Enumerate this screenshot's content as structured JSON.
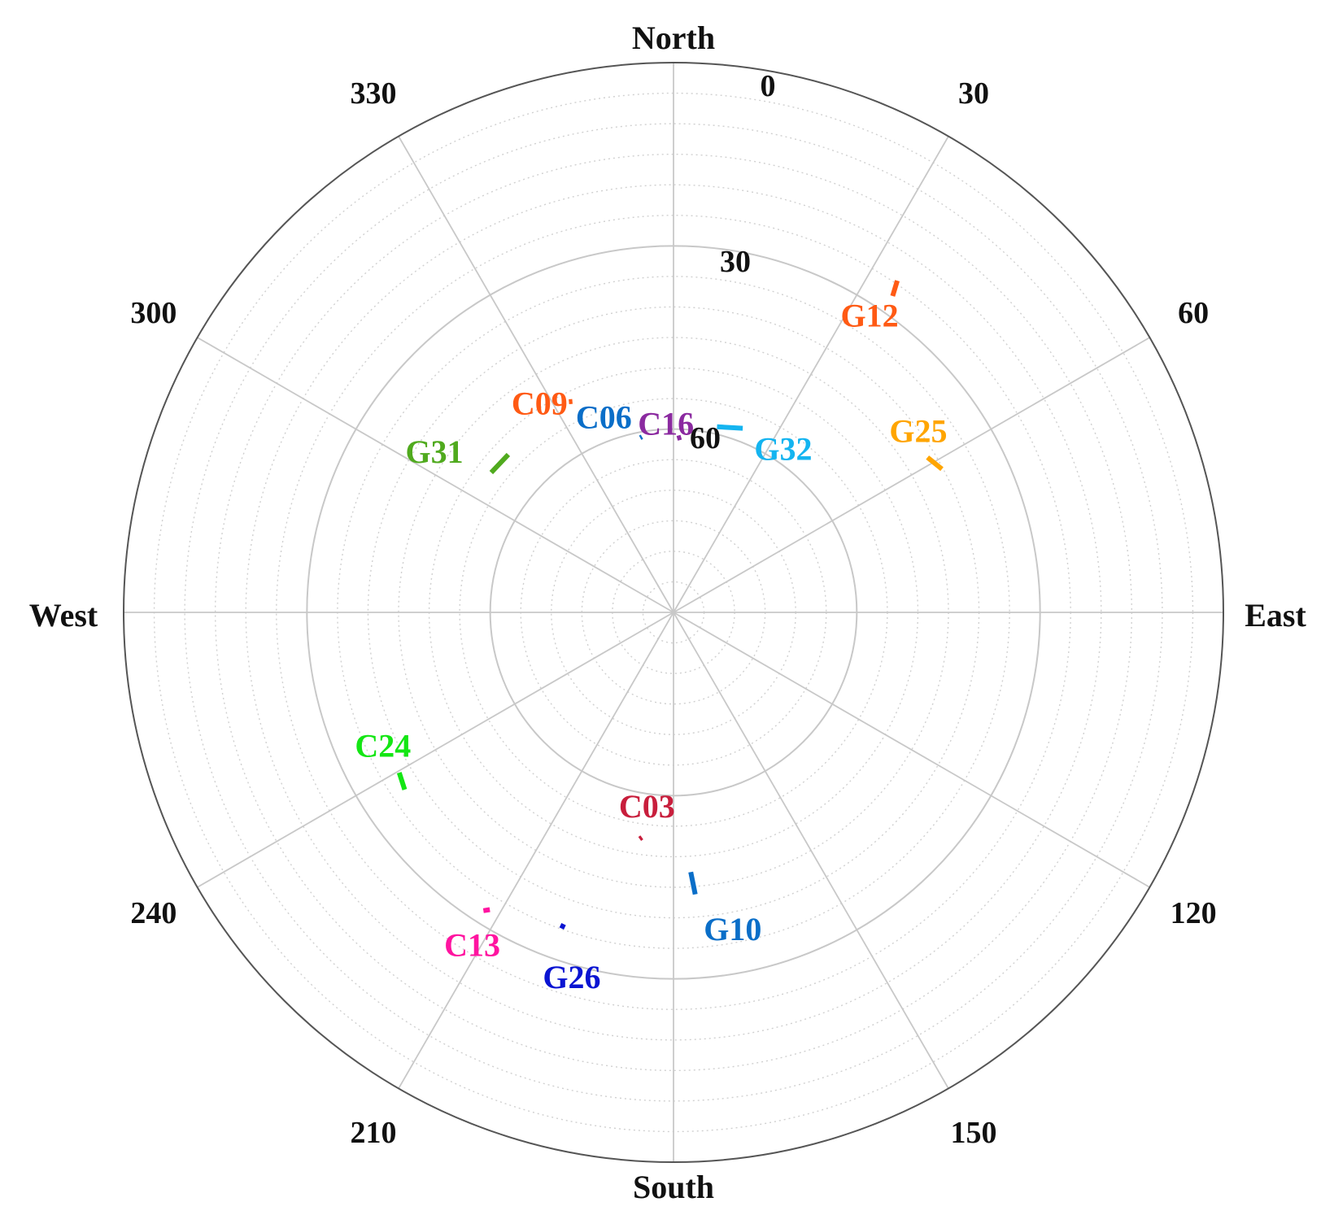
{
  "chart_data": {
    "type": "skyplot",
    "title": "",
    "directions": {
      "north": "North",
      "east": "East",
      "south": "South",
      "west": "West"
    },
    "azimuth_ticks": [
      "0",
      "30",
      "60",
      "120",
      "150",
      "210",
      "240",
      "300",
      "330"
    ],
    "azimuth_tick_values": [
      0,
      30,
      60,
      120,
      150,
      210,
      240,
      300,
      330
    ],
    "elevation_ticks": [
      "0",
      "30",
      "60"
    ],
    "elevation_tick_values": [
      0,
      30,
      60
    ],
    "elevation_range": [
      0,
      90
    ],
    "minor_ring_step_deg": 5,
    "grid": true,
    "colors": {
      "major_grid": "#c8c8c8",
      "minor_grid": "#d0d0d0",
      "outline": "#555555"
    },
    "series": [
      {
        "name": "G12",
        "color": "#ff5a14",
        "track": [
          [
            34.7,
            27.0
          ],
          [
            34.0,
            24.5
          ]
        ]
      },
      {
        "name": "G25",
        "color": "#ffa500",
        "track": [
          [
            58.6,
            41.3
          ],
          [
            61.9,
            40.2
          ]
        ]
      },
      {
        "name": "C16",
        "color": "#8b2aa0",
        "track": [
          [
            1.2,
            61.5
          ],
          [
            2.5,
            61.3
          ]
        ]
      },
      {
        "name": "C06",
        "color": "#0a6ec8",
        "track": [
          [
            349.8,
            60.8
          ],
          [
            349.2,
            60.9
          ]
        ]
      },
      {
        "name": "C09",
        "color": "#ff5a14",
        "track": [
          [
            333.6,
            51.5
          ],
          [
            334.4,
            51.7
          ]
        ]
      },
      {
        "name": "G32",
        "color": "#14b4f0",
        "track": [
          [
            13.2,
            58.8
          ],
          [
            20.6,
            57.8
          ]
        ]
      },
      {
        "name": "G31",
        "color": "#50aa1e",
        "track": [
          [
            313.7,
            52.6
          ],
          [
            307.5,
            52.4
          ]
        ]
      },
      {
        "name": "C24",
        "color": "#14e614",
        "track": [
          [
            239.7,
            38.0
          ],
          [
            236.6,
            37.3
          ]
        ]
      },
      {
        "name": "C03",
        "color": "#c81e3c",
        "track": [
          [
            188.0,
            52.8
          ],
          [
            188.5,
            52.5
          ]
        ]
      },
      {
        "name": "G10",
        "color": "#0a6ec8",
        "track": [
          [
            176.2,
            47.4
          ],
          [
            175.6,
            43.7
          ]
        ]
      },
      {
        "name": "C13",
        "color": "#ff14a0",
        "track": [
          [
            211.7,
            32.8
          ],
          [
            212.5,
            32.1
          ]
        ]
      },
      {
        "name": "G26",
        "color": "#0a14d2",
        "track": [
          [
            199.4,
            35.9
          ],
          [
            199.5,
            35.1
          ]
        ]
      }
    ]
  },
  "labels": [
    {
      "name": "G12",
      "az": 33.4,
      "el": 31.7
    },
    {
      "name": "G25",
      "az": 53.4,
      "el": 40.1
    },
    {
      "name": "C16",
      "az": 357.7,
      "el": 59.0
    },
    {
      "name": "C06",
      "az": 340.4,
      "el": 56.0
    },
    {
      "name": "C09",
      "az": 327.4,
      "el": 49.3
    },
    {
      "name": "G32",
      "az": 33.8,
      "el": 57.7
    },
    {
      "name": "G31",
      "az": 304.0,
      "el": 42.8
    },
    {
      "name": "C24",
      "az": 245.4,
      "el": 37.7
    },
    {
      "name": "C03",
      "az": 187.8,
      "el": 58.0
    },
    {
      "name": "G10",
      "az": 169.4,
      "el": 37.3
    },
    {
      "name": "C13",
      "az": 211.2,
      "el": 26.4
    },
    {
      "name": "G26",
      "az": 195.6,
      "el": 28.1
    }
  ]
}
